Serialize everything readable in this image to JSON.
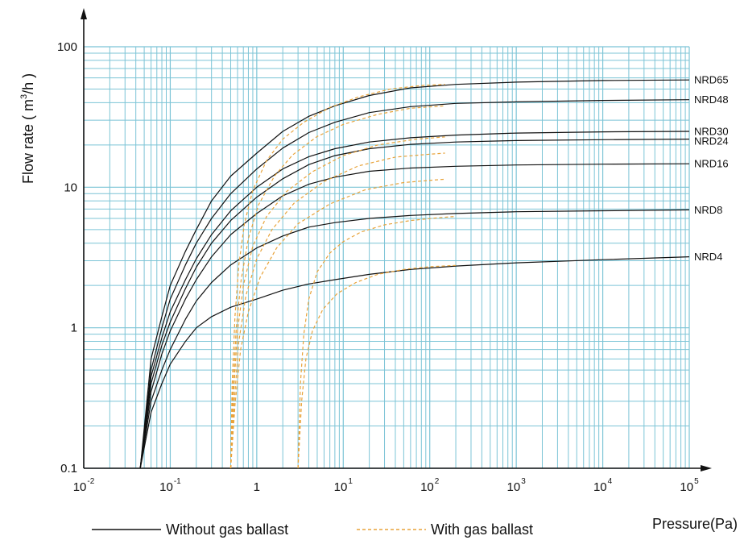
{
  "colors": {
    "grid": "#7cc4d6",
    "without_gas_ballast": "#111111",
    "with_gas_ballast": "#e8a33a",
    "axis": "#111111"
  },
  "chart_data": {
    "type": "line",
    "x_scale": "log",
    "y_scale": "log",
    "xlim": [
      0.01,
      100000
    ],
    "ylim": [
      0.1,
      100
    ],
    "xlabel": "Pressure(Pa)",
    "ylabel": "Flow rate ( m³/h )",
    "ylabel_parts": {
      "main": "Flow rate ( m",
      "sup": "3",
      "end": "/h )"
    },
    "grid": true,
    "x_ticks": [
      {
        "base": "10",
        "exp": "-2"
      },
      {
        "base": "10",
        "exp": "-1"
      },
      {
        "base": "1",
        "exp": ""
      },
      {
        "base": "10",
        "exp": "1"
      },
      {
        "base": "10",
        "exp": "2"
      },
      {
        "base": "10",
        "exp": "3"
      },
      {
        "base": "10",
        "exp": "4"
      },
      {
        "base": "10",
        "exp": "5"
      }
    ],
    "y_ticks": [
      "0.1",
      "1",
      "10",
      "100"
    ],
    "legend": {
      "placement": "bottom",
      "entries": [
        {
          "label": "Without gas ballast",
          "style": "solid"
        },
        {
          "label": "With gas ballast",
          "style": "dashed"
        }
      ]
    },
    "series": [
      {
        "name": "NRD65",
        "style": "solid",
        "x": [
          0.045,
          0.06,
          0.08,
          0.1,
          0.15,
          0.2,
          0.3,
          0.5,
          1,
          2,
          4,
          8,
          20,
          60,
          200,
          1000,
          10000,
          100000
        ],
        "y": [
          0.1,
          0.6,
          1.2,
          2,
          3.5,
          5,
          8,
          12,
          17.5,
          25,
          32,
          38,
          45,
          51,
          54,
          56,
          57.5,
          58
        ]
      },
      {
        "name": "NRD48",
        "style": "solid",
        "x": [
          0.045,
          0.06,
          0.08,
          0.1,
          0.15,
          0.2,
          0.3,
          0.5,
          1,
          2,
          4,
          8,
          20,
          60,
          200,
          1000,
          10000,
          100000
        ],
        "y": [
          0.1,
          0.5,
          1,
          1.6,
          2.8,
          4,
          6,
          9,
          13.5,
          19,
          24.5,
          29,
          34,
          37.5,
          39.5,
          40.5,
          41.5,
          42
        ]
      },
      {
        "name": "NRD30",
        "style": "solid",
        "x": [
          0.045,
          0.06,
          0.08,
          0.1,
          0.15,
          0.2,
          0.3,
          0.5,
          1,
          2,
          4,
          8,
          20,
          60,
          200,
          1000,
          10000,
          100000
        ],
        "y": [
          0.1,
          0.45,
          0.85,
          1.3,
          2.2,
          3.1,
          4.6,
          6.8,
          10,
          13.5,
          16.5,
          18.8,
          21,
          22.5,
          23.5,
          24.3,
          24.8,
          25
        ]
      },
      {
        "name": "NRD24",
        "style": "solid",
        "x": [
          0.045,
          0.06,
          0.08,
          0.1,
          0.15,
          0.2,
          0.3,
          0.5,
          1,
          2,
          4,
          8,
          20,
          60,
          200,
          1000,
          10000,
          100000
        ],
        "y": [
          0.1,
          0.4,
          0.75,
          1.1,
          1.9,
          2.7,
          4,
          5.8,
          8.5,
          11.5,
          14.5,
          16.8,
          18.8,
          20.2,
          21,
          21.5,
          21.8,
          22
        ]
      },
      {
        "name": "NRD16",
        "style": "solid",
        "x": [
          0.045,
          0.06,
          0.08,
          0.1,
          0.15,
          0.2,
          0.3,
          0.5,
          1,
          2,
          4,
          8,
          20,
          60,
          200,
          1000,
          10000,
          100000
        ],
        "y": [
          0.1,
          0.35,
          0.65,
          0.95,
          1.6,
          2.2,
          3.2,
          4.6,
          6.5,
          8.7,
          10.5,
          11.8,
          13,
          13.7,
          14.1,
          14.4,
          14.6,
          14.7
        ]
      },
      {
        "name": "NRD8",
        "style": "solid",
        "x": [
          0.045,
          0.06,
          0.08,
          0.1,
          0.15,
          0.2,
          0.3,
          0.5,
          1,
          2,
          4,
          8,
          20,
          60,
          200,
          1000,
          10000,
          100000
        ],
        "y": [
          0.1,
          0.3,
          0.5,
          0.7,
          1.15,
          1.55,
          2.1,
          2.8,
          3.7,
          4.5,
          5.2,
          5.6,
          6,
          6.3,
          6.5,
          6.7,
          6.8,
          6.9
        ]
      },
      {
        "name": "NRD4",
        "style": "solid",
        "x": [
          0.045,
          0.06,
          0.08,
          0.1,
          0.15,
          0.2,
          0.3,
          0.5,
          1,
          2,
          4,
          8,
          20,
          60,
          200,
          1000,
          10000,
          100000
        ],
        "y": [
          0.1,
          0.25,
          0.4,
          0.55,
          0.8,
          1,
          1.2,
          1.4,
          1.6,
          1.85,
          2.05,
          2.2,
          2.4,
          2.6,
          2.75,
          2.9,
          3.05,
          3.2
        ]
      },
      {
        "name": "",
        "style": "dashed",
        "x": [
          0.5,
          0.52,
          0.56,
          0.62,
          0.72,
          0.9,
          1.3,
          2,
          3.5,
          7,
          15,
          35,
          80,
          150
        ],
        "y": [
          0.1,
          0.4,
          1.2,
          2.8,
          5.5,
          9.5,
          15.5,
          22,
          29,
          37,
          44,
          50,
          53,
          54
        ]
      },
      {
        "name": "",
        "style": "dashed",
        "x": [
          0.5,
          0.53,
          0.58,
          0.66,
          0.8,
          1.05,
          1.6,
          2.6,
          5,
          10,
          25,
          60,
          150
        ],
        "y": [
          0.1,
          0.35,
          1,
          2.2,
          4.3,
          7.5,
          12,
          17,
          23,
          28,
          33,
          36.5,
          38
        ]
      },
      {
        "name": "",
        "style": "dashed",
        "x": [
          0.5,
          0.54,
          0.6,
          0.7,
          0.9,
          1.3,
          2.2,
          4.5,
          10,
          25,
          70,
          150
        ],
        "y": [
          0.1,
          0.35,
          0.95,
          2,
          3.8,
          6.2,
          9.3,
          13,
          16.8,
          20,
          22,
          22.8
        ]
      },
      {
        "name": "",
        "style": "dashed",
        "x": [
          0.5,
          0.55,
          0.62,
          0.75,
          1,
          1.5,
          2.7,
          6,
          15,
          40,
          100,
          150
        ],
        "y": [
          0.1,
          0.3,
          0.8,
          1.7,
          3.1,
          5,
          7.7,
          11,
          14.2,
          16.4,
          17.2,
          17.5
        ]
      },
      {
        "name": "",
        "style": "dashed",
        "x": [
          0.5,
          0.56,
          0.65,
          0.8,
          1.1,
          1.7,
          3,
          7,
          18,
          50,
          120,
          150
        ],
        "y": [
          0.1,
          0.28,
          0.7,
          1.3,
          2.3,
          3.7,
          5.5,
          7.6,
          9.6,
          10.8,
          11.3,
          11.4
        ]
      },
      {
        "name": "",
        "style": "dashed",
        "x": [
          3,
          3.2,
          3.5,
          4,
          5,
          7,
          10,
          16,
          30,
          60,
          120,
          200
        ],
        "y": [
          0.1,
          0.4,
          0.9,
          1.6,
          2.5,
          3.4,
          4.1,
          4.8,
          5.4,
          5.8,
          6.05,
          6.2
        ]
      },
      {
        "name": "",
        "style": "dashed",
        "x": [
          3,
          3.3,
          3.7,
          4.4,
          5.8,
          8.5,
          14,
          25,
          50,
          100,
          200
        ],
        "y": [
          0.1,
          0.3,
          0.6,
          0.95,
          1.35,
          1.75,
          2.1,
          2.4,
          2.6,
          2.72,
          2.78
        ]
      }
    ]
  }
}
